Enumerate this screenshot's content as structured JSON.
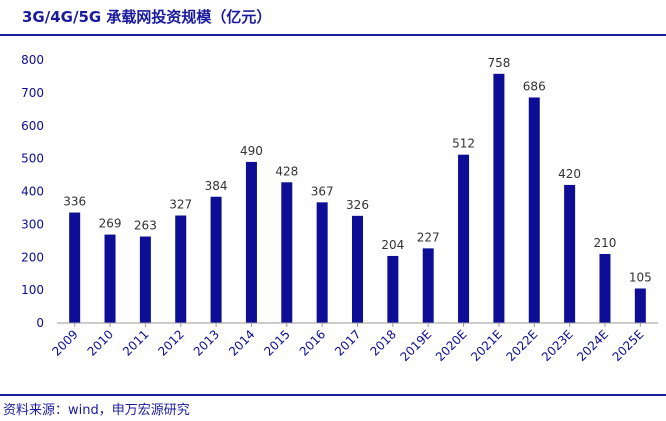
{
  "title": "3G/4G/5G 承载网投资规模（亿元）",
  "source": "资料来源：wind，申万宏源研究",
  "colors": {
    "bar": "#0d0d96",
    "axis_text": "#0d0d96",
    "value_text": "#333333",
    "frame": "#1a1aa0"
  },
  "chart_data": {
    "type": "bar",
    "title": "3G/4G/5G 承载网投资规模（亿元）",
    "xlabel": "",
    "ylabel": "",
    "categories": [
      "2009",
      "2010",
      "2011",
      "2012",
      "2013",
      "2014",
      "2015",
      "2016",
      "2017",
      "2018",
      "2019E",
      "2020E",
      "2021E",
      "2022E",
      "2023E",
      "2024E",
      "2025E"
    ],
    "values": [
      336,
      269,
      263,
      327,
      384,
      490,
      428,
      367,
      326,
      204,
      227,
      512,
      758,
      686,
      420,
      210,
      105
    ],
    "ylim": [
      0,
      800
    ],
    "yticks": [
      0,
      100,
      200,
      300,
      400,
      500,
      600,
      700,
      800
    ],
    "grid": false,
    "legend": "none",
    "data_labels": true
  }
}
